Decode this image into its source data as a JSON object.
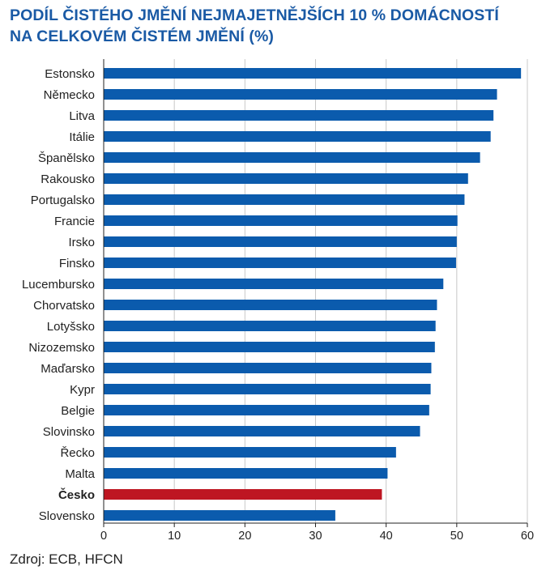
{
  "chart_data": {
    "type": "bar",
    "orientation": "horizontal",
    "title_lines": [
      "PODÍL ČISTÉHO JMĚNÍ NEJMAJETNĚJŠÍCH 10 % DOMÁCNOSTÍ",
      "NA CELKOVÉM ČISTÉM JMĚNÍ (%)"
    ],
    "categories": [
      "Estonsko",
      "Německo",
      "Litva",
      "Itálie",
      "Španělsko",
      "Rakousko",
      "Portugalsko",
      "Francie",
      "Irsko",
      "Finsko",
      "Lucembursko",
      "Chorvatsko",
      "Lotyšsko",
      "Nizozemsko",
      "Maďarsko",
      "Kypr",
      "Belgie",
      "Slovinsko",
      "Řecko",
      "Malta",
      "Česko",
      "Slovensko"
    ],
    "values": [
      59.1,
      55.7,
      55.2,
      54.8,
      53.3,
      51.6,
      51.1,
      50.1,
      50.0,
      49.9,
      48.1,
      47.2,
      47.0,
      46.9,
      46.4,
      46.3,
      46.1,
      44.8,
      41.4,
      40.2,
      39.4,
      32.8
    ],
    "highlight": "Česko",
    "colors": {
      "bar": "#0b5bad",
      "highlight": "#be1622",
      "grid": "#c8c8c8",
      "axis": "#222222",
      "title": "#1a5aa5"
    },
    "xlim": [
      0,
      60
    ],
    "xticks": [
      0,
      10,
      20,
      30,
      40,
      50,
      60
    ],
    "xlabel": "",
    "ylabel": "",
    "grid": true
  },
  "source": "Zdroj: ECB, HFCN"
}
